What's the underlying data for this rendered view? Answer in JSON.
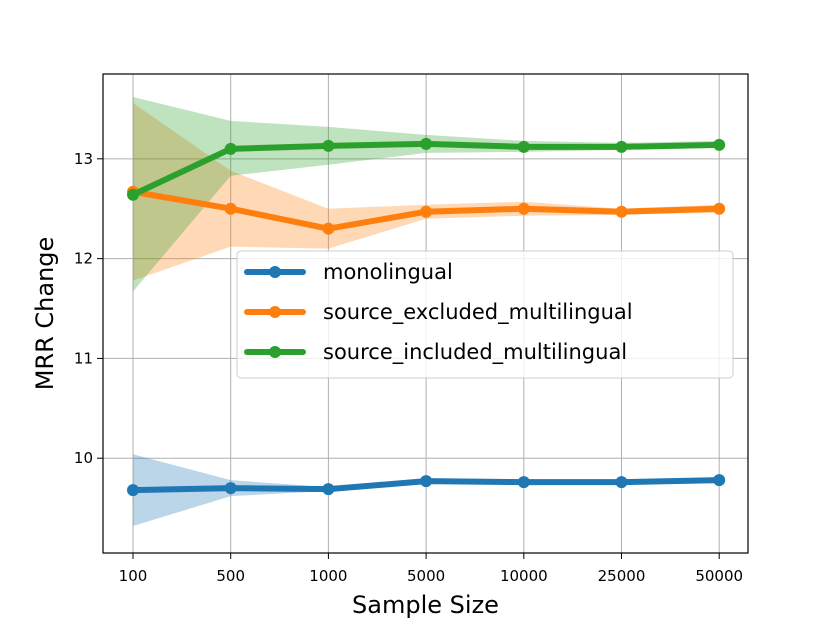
{
  "chart_data": {
    "type": "line",
    "xlabel": "Sample Size",
    "ylabel": "MRR Change",
    "categories": [
      "100",
      "500",
      "1000",
      "5000",
      "10000",
      "25000",
      "50000"
    ],
    "yticks": [
      10,
      11,
      12,
      13
    ],
    "ylim": [
      9.05,
      13.85
    ],
    "grid": true,
    "legend_position": "center-right",
    "series": [
      {
        "name": "monolingual",
        "color": "#1f77b4",
        "values": [
          9.68,
          9.7,
          9.69,
          9.77,
          9.76,
          9.76,
          9.78
        ],
        "band_low": [
          9.32,
          9.62,
          9.67,
          9.75,
          9.74,
          9.74,
          9.75
        ],
        "band_high": [
          10.04,
          9.78,
          9.71,
          9.79,
          9.78,
          9.78,
          9.81
        ]
      },
      {
        "name": "source_excluded_multilingual",
        "color": "#ff7f0e",
        "values": [
          12.67,
          12.5,
          12.3,
          12.47,
          12.5,
          12.47,
          12.5
        ],
        "band_low": [
          11.78,
          12.12,
          12.1,
          12.4,
          12.43,
          12.44,
          12.46
        ],
        "band_high": [
          13.56,
          12.88,
          12.5,
          12.54,
          12.57,
          12.5,
          12.54
        ]
      },
      {
        "name": "source_included_multilingual",
        "color": "#2ca02c",
        "values": [
          12.64,
          13.1,
          13.13,
          13.15,
          13.12,
          13.12,
          13.14
        ],
        "band_low": [
          11.67,
          12.83,
          12.94,
          13.06,
          13.07,
          13.09,
          13.11
        ],
        "band_high": [
          13.62,
          13.38,
          13.32,
          13.24,
          13.18,
          13.16,
          13.18
        ]
      }
    ]
  }
}
